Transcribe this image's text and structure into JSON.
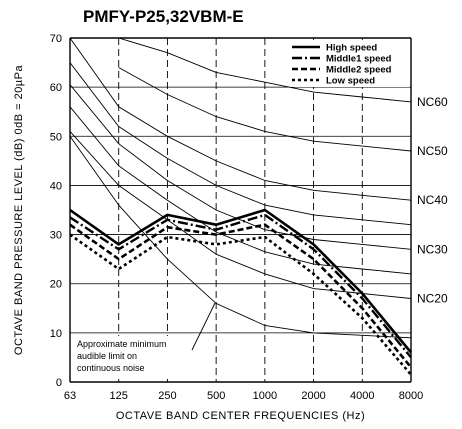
{
  "chart_data": {
    "type": "line",
    "title": "PMFY-P25,32VBM-E",
    "xlabel": "OCTAVE BAND CENTER FREQUENCIES (Hz)",
    "ylabel": "OCTAVE BAND PRESSURE LEVEL (dB) 0dB = 20µPa",
    "categories": [
      "63",
      "125",
      "250",
      "500",
      "1000",
      "2000",
      "4000",
      "8000"
    ],
    "y_ticks": [
      "0",
      "10",
      "20",
      "30",
      "40",
      "50",
      "60",
      "70"
    ],
    "ylim": [
      0,
      70
    ],
    "grid": true,
    "legend_position": "top-right",
    "series": [
      {
        "name": "High speed",
        "style": "solid",
        "values": [
          35,
          28,
          34,
          32,
          35,
          28,
          18,
          6
        ]
      },
      {
        "name": "Middle1 speed",
        "style": "dashdot",
        "values": [
          33.5,
          27,
          33,
          31,
          34,
          27,
          17,
          5
        ]
      },
      {
        "name": "Middle2 speed",
        "style": "dashed",
        "values": [
          32,
          25,
          31.5,
          30,
          32,
          25,
          15,
          3
        ]
      },
      {
        "name": "Low speed",
        "style": "dotted",
        "values": [
          30,
          23,
          29.5,
          28,
          29.5,
          22,
          13,
          1.5
        ]
      }
    ],
    "nc_curves": [
      {
        "name": "NC60",
        "values": [
          null,
          70,
          67,
          63,
          61,
          59,
          58,
          57
        ]
      },
      {
        "name": "NC50",
        "values": [
          null,
          64,
          58.5,
          54,
          51,
          49,
          48,
          47
        ]
      },
      {
        "name": "NC40",
        "values": [
          70,
          56,
          50,
          45,
          41,
          39,
          38,
          37
        ]
      },
      {
        "name": "NC30",
        "values": [
          60.5,
          48.5,
          41,
          35,
          31,
          29,
          28,
          27
        ]
      },
      {
        "name": "NC20",
        "values": [
          51,
          40,
          33,
          26,
          22,
          19,
          18,
          17
        ]
      },
      {
        "name": "NC_extra1",
        "values": [
          65,
          52,
          45.5,
          40,
          36,
          34,
          33,
          32
        ]
      },
      {
        "name": "NC_extra2",
        "values": [
          56,
          44,
          37,
          30.5,
          26.5,
          24,
          23,
          22
        ]
      }
    ],
    "nc_labels": [
      "NC60",
      "NC50",
      "NC40",
      "NC30",
      "NC20"
    ],
    "min_audible_curve": [
      50,
      36,
      25,
      16,
      11.5,
      10,
      9.5,
      9
    ],
    "annotation": [
      "Approximate minimum",
      "audible limit on",
      "continuous noise"
    ]
  }
}
